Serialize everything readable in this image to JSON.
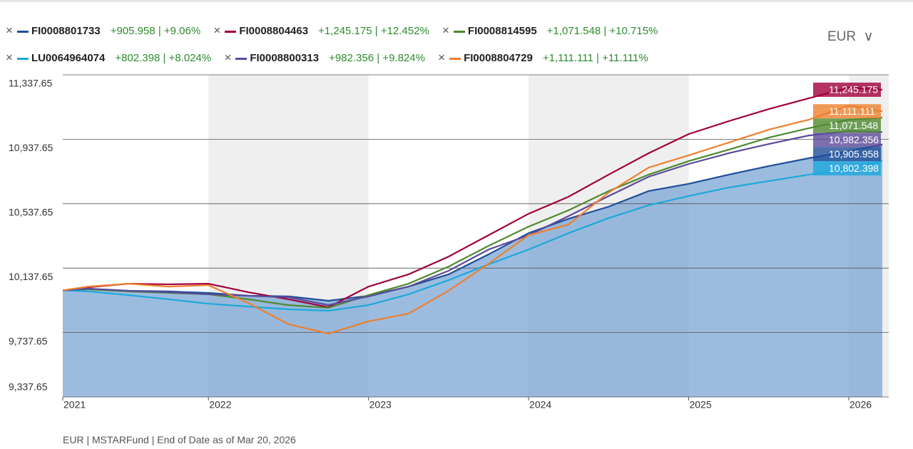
{
  "chart_data": {
    "type": "line",
    "currency": "EUR",
    "footnote": "EUR | MSTARFund | End of Date as of Mar 20, 2026",
    "x": [
      2021.09,
      2021.25,
      2021.5,
      2021.75,
      2022,
      2022.25,
      2022.5,
      2022.75,
      2023,
      2023.25,
      2023.5,
      2023.75,
      2024,
      2024.25,
      2024.5,
      2024.75,
      2025,
      2025.25,
      2025.5,
      2025.75,
      2026,
      2026.21
    ],
    "xlim": [
      2021.09,
      2026.25
    ],
    "xticks": [
      2021,
      2022,
      2023,
      2024,
      2025,
      2026
    ],
    "ylim": [
      9337.65,
      11337.65
    ],
    "yticks": [
      {
        "value": 9337.65,
        "label": "9,337.65"
      },
      {
        "value": 9737.65,
        "label": "9,737.65"
      },
      {
        "value": 10137.65,
        "label": "10,137.65"
      },
      {
        "value": 10537.65,
        "label": "10,537.65"
      },
      {
        "value": 10937.65,
        "label": "10,937.65"
      },
      {
        "value": 11337.65,
        "label": "11,337.65"
      }
    ],
    "grid": true,
    "area_series": 0,
    "series": [
      {
        "name": "FI0008801733",
        "change": "+905.958 | +9.06%",
        "color": "#1f4e99",
        "values": [
          10000,
          10010,
          9997,
          9993,
          9984,
          9966,
          9962,
          9935,
          9966,
          10023,
          10099,
          10223,
          10355,
          10444,
          10519,
          10616,
          10661,
          10718,
          10771,
          10820,
          10864,
          10905.958
        ],
        "value_labels": [
          null,
          null,
          null,
          null,
          null,
          null,
          null,
          null,
          null,
          null,
          null,
          null,
          null,
          null,
          null,
          null,
          null,
          null,
          null,
          null,
          null,
          "10,905.958"
        ]
      },
      {
        "name": "FI0008804463",
        "change": "+1,245.175 | +12.452%",
        "color": "#a0003c",
        "values": [
          10000,
          10019,
          10041,
          10037,
          10041,
          9988,
          9944,
          9895,
          10023,
          10099,
          10209,
          10342,
          10475,
          10581,
          10718,
          10851,
          10970,
          11050,
          11125,
          11192,
          11258,
          11245.175
        ],
        "value_labels": [
          null,
          null,
          null,
          null,
          null,
          null,
          null,
          null,
          null,
          null,
          null,
          null,
          null,
          null,
          null,
          null,
          null,
          null,
          null,
          null,
          null,
          "11,245.175"
        ]
      },
      {
        "name": "FI0008814595",
        "change": "+1,071.548 | +10.715%",
        "color": "#4e8a2f",
        "values": [
          10000,
          10006,
          9993,
          9984,
          9975,
          9944,
          9908,
          9891,
          9970,
          10041,
          10147,
          10276,
          10395,
          10497,
          10616,
          10718,
          10802,
          10873,
          10948,
          11006,
          11059,
          11071.548
        ],
        "value_labels": [
          null,
          null,
          null,
          null,
          null,
          null,
          null,
          null,
          null,
          null,
          null,
          null,
          null,
          null,
          null,
          null,
          null,
          null,
          null,
          null,
          null,
          "11,071.548"
        ]
      },
      {
        "name": "LU0064964074",
        "change": "+802.398 | +8.024%",
        "color": "#1ba8dc",
        "values": [
          10000,
          9993,
          9970,
          9944,
          9917,
          9899,
          9882,
          9873,
          9908,
          9975,
          10063,
          10161,
          10253,
          10355,
          10448,
          10528,
          10585,
          10638,
          10678,
          10718,
          10753,
          10802.398
        ],
        "value_labels": [
          null,
          null,
          null,
          null,
          null,
          null,
          null,
          null,
          null,
          null,
          null,
          null,
          null,
          null,
          null,
          null,
          null,
          null,
          null,
          null,
          null,
          "10,802.398"
        ]
      },
      {
        "name": "FI0008800313",
        "change": "+982.356 | +9.824%",
        "color": "#5b4b9a",
        "values": [
          10000,
          10010,
          9997,
          9988,
          9975,
          9966,
          9957,
          9908,
          9962,
          10023,
          10121,
          10253,
          10342,
          10461,
          10585,
          10705,
          10784,
          10851,
          10908,
          10961,
          10988,
          10982.356
        ],
        "value_labels": [
          null,
          null,
          null,
          null,
          null,
          null,
          null,
          null,
          null,
          null,
          null,
          null,
          null,
          null,
          null,
          null,
          null,
          null,
          null,
          null,
          null,
          "10,982.356"
        ]
      },
      {
        "name": "FI0008804729",
        "change": "+1,111.111 | +11.111%",
        "color": "#ee7f2d",
        "values": [
          10000,
          10023,
          10041,
          10023,
          10032,
          9921,
          9789,
          9731,
          9807,
          9855,
          9997,
          10165,
          10342,
          10408,
          10607,
          10762,
          10838,
          10917,
          10997,
          11059,
          11147,
          11111.111
        ],
        "value_labels": [
          null,
          null,
          null,
          null,
          null,
          null,
          null,
          null,
          null,
          null,
          null,
          null,
          null,
          null,
          null,
          null,
          null,
          null,
          null,
          null,
          null,
          "11,111.111"
        ]
      }
    ]
  }
}
